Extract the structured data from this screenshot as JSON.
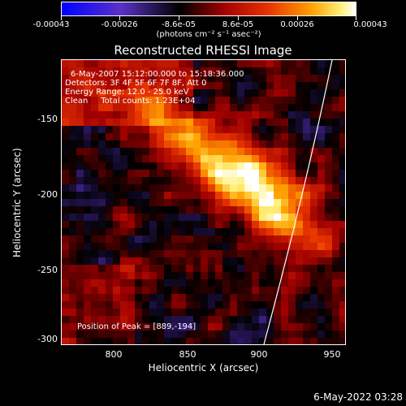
{
  "colorbar": {
    "ticks": [
      "-0.00043",
      "-0.00026",
      "-8.6e-05",
      "8.6e-05",
      "0.00026",
      "0.00043"
    ],
    "unit": "(photons cm⁻² s⁻¹ asec⁻²)"
  },
  "title": "Reconstructed RHESSI Image",
  "info": {
    "line1": "6-May-2007 15:12:00.000 to 15:18:36.000",
    "line2": "Detectors: 3F 4F 5F 6F 7F 8F, Att 0",
    "line3": "Energy Range: 12.0 - 25.0 keV",
    "line4": "Clean     Total counts: 1.23E+04",
    "peak": "Position of Peak = [889,-194]"
  },
  "axes": {
    "ylabel": "Heliocentric Y (arcsec)",
    "xlabel": "Heliocentric X (arcsec)",
    "yticks": [
      "-150",
      "-200",
      "-250",
      "-300"
    ],
    "xticks": [
      "800",
      "850",
      "900",
      "950"
    ]
  },
  "footer": {
    "date": "6-May-2022 03:28"
  },
  "colors": {
    "background": "#000000",
    "text": "#ffffff"
  }
}
